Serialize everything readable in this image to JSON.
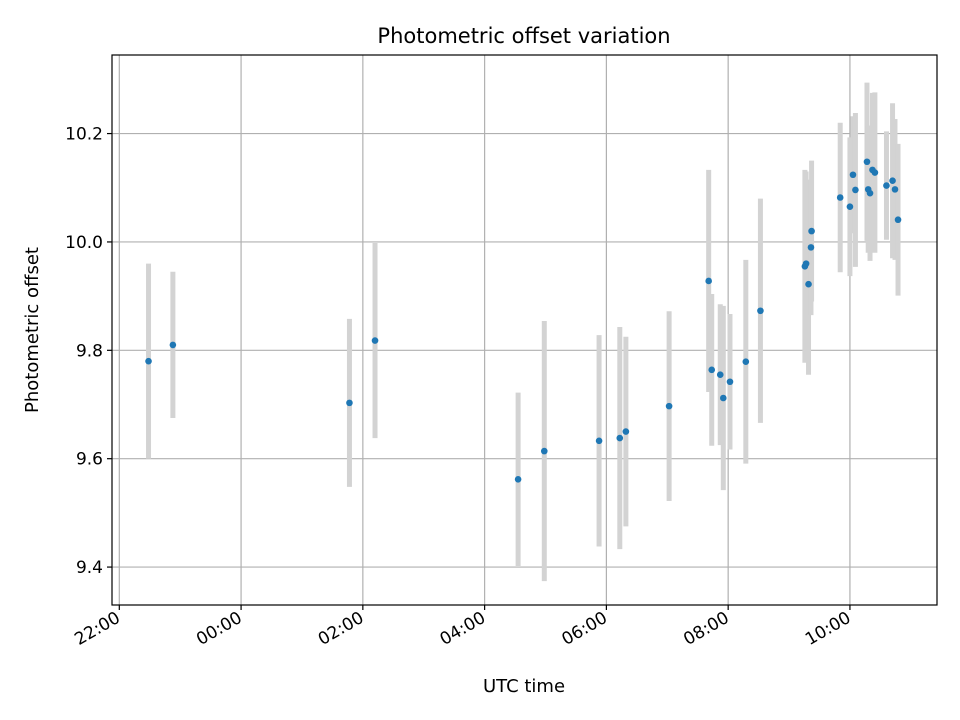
{
  "chart_data": {
    "type": "scatter",
    "title": "Photometric offset variation",
    "xlabel": "UTC time",
    "ylabel": "Photometric offset",
    "x_unit": "hours",
    "xlim": [
      -2.12,
      11.43
    ],
    "ylim": [
      9.33,
      10.345
    ],
    "x_ticks": [
      {
        "value": -2,
        "label": "22:00"
      },
      {
        "value": 0,
        "label": "00:00"
      },
      {
        "value": 2,
        "label": "02:00"
      },
      {
        "value": 4,
        "label": "04:00"
      },
      {
        "value": 6,
        "label": "06:00"
      },
      {
        "value": 8,
        "label": "08:00"
      },
      {
        "value": 10,
        "label": "10:00"
      }
    ],
    "y_ticks": [
      {
        "value": 9.4,
        "label": "9.4"
      },
      {
        "value": 9.6,
        "label": "9.6"
      },
      {
        "value": 9.8,
        "label": "9.8"
      },
      {
        "value": 10.0,
        "label": "10.0"
      },
      {
        "value": 10.2,
        "label": "10.2"
      }
    ],
    "grid": true,
    "marker_color": "#1f77b4",
    "errorbar_color": "#d3d3d3",
    "points": [
      {
        "x": -1.52,
        "y": 9.78,
        "err": 0.18
      },
      {
        "x": -1.12,
        "y": 9.81,
        "err": 0.135
      },
      {
        "x": 1.78,
        "y": 9.703,
        "err": 0.155
      },
      {
        "x": 2.2,
        "y": 9.818,
        "err": 0.18
      },
      {
        "x": 4.55,
        "y": 9.562,
        "err": 0.16
      },
      {
        "x": 4.98,
        "y": 9.614,
        "err": 0.24
      },
      {
        "x": 5.88,
        "y": 9.633,
        "err": 0.195
      },
      {
        "x": 6.22,
        "y": 9.638,
        "err": 0.205
      },
      {
        "x": 6.32,
        "y": 9.65,
        "err": 0.175
      },
      {
        "x": 7.03,
        "y": 9.697,
        "err": 0.175
      },
      {
        "x": 7.68,
        "y": 9.928,
        "err": 0.205
      },
      {
        "x": 7.73,
        "y": 9.764,
        "err": 0.14
      },
      {
        "x": 7.87,
        "y": 9.755,
        "err": 0.13
      },
      {
        "x": 7.92,
        "y": 9.712,
        "err": 0.17
      },
      {
        "x": 8.03,
        "y": 9.742,
        "err": 0.125
      },
      {
        "x": 8.29,
        "y": 9.779,
        "err": 0.188
      },
      {
        "x": 8.53,
        "y": 9.873,
        "err": 0.207
      },
      {
        "x": 9.26,
        "y": 9.955,
        "err": 0.178
      },
      {
        "x": 9.28,
        "y": 9.96,
        "err": 0.17
      },
      {
        "x": 9.32,
        "y": 9.922,
        "err": 0.167
      },
      {
        "x": 9.36,
        "y": 9.99,
        "err": 0.125
      },
      {
        "x": 9.37,
        "y": 10.02,
        "err": 0.13
      },
      {
        "x": 9.84,
        "y": 10.082,
        "err": 0.138
      },
      {
        "x": 10.0,
        "y": 10.065,
        "err": 0.128
      },
      {
        "x": 10.05,
        "y": 10.124,
        "err": 0.108
      },
      {
        "x": 10.09,
        "y": 10.096,
        "err": 0.142
      },
      {
        "x": 10.28,
        "y": 10.148,
        "err": 0.146
      },
      {
        "x": 10.3,
        "y": 10.097,
        "err": 0.117
      },
      {
        "x": 10.33,
        "y": 10.09,
        "err": 0.125
      },
      {
        "x": 10.37,
        "y": 10.133,
        "err": 0.142
      },
      {
        "x": 10.41,
        "y": 10.128,
        "err": 0.148
      },
      {
        "x": 10.6,
        "y": 10.104,
        "err": 0.1
      },
      {
        "x": 10.7,
        "y": 10.113,
        "err": 0.143
      },
      {
        "x": 10.74,
        "y": 10.097,
        "err": 0.13
      },
      {
        "x": 10.79,
        "y": 10.041,
        "err": 0.14
      }
    ]
  }
}
